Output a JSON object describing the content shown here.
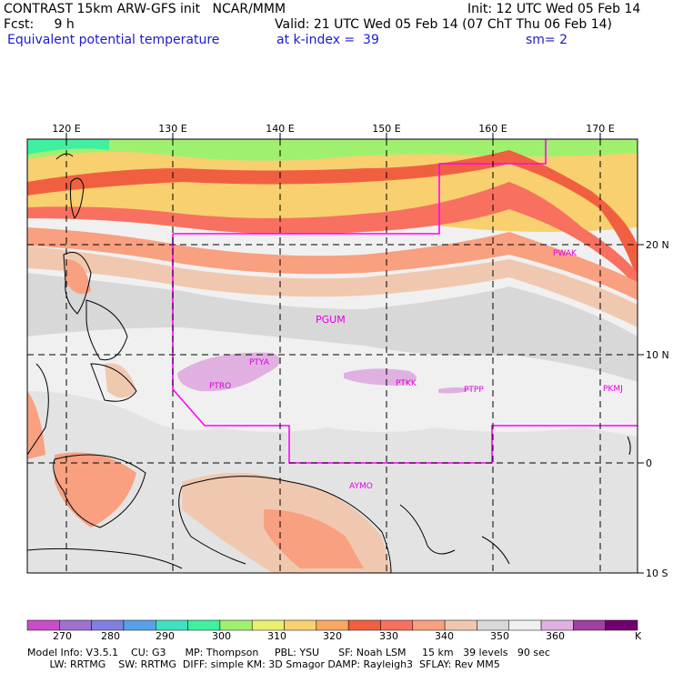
{
  "header": {
    "line1_left": "CONTRAST 15km ARW-GFS init   NCAR/MMM",
    "line1_right": "Init: 12 UTC Wed 05 Feb 14",
    "line2_left": "Fcst:     9 h",
    "line2_right": "Valid: 21 UTC Wed 05 Feb 14 (07 ChT Thu 06 Feb 14)",
    "line3_left": "Equivalent potential temperature",
    "line3_mid": "at k-index =  39",
    "line3_right": "sm= 2"
  },
  "map": {
    "lon_labels": [
      "120 E",
      "130 E",
      "140 E",
      "150 E",
      "160 E",
      "170 E"
    ],
    "lat_labels": [
      "20 N",
      "10 N",
      "0",
      "10 S"
    ],
    "stations": [
      "PWAK",
      "PGUM",
      "PTYA",
      "PTRO",
      "PTKK",
      "PTPP",
      "PKMJ",
      "AYMO"
    ]
  },
  "colorbar": {
    "colors": [
      "#c84ec8",
      "#a070d0",
      "#8080e0",
      "#5aa0e8",
      "#40e0c0",
      "#40f0a0",
      "#a0f070",
      "#e8f070",
      "#f8d070",
      "#f8a860",
      "#f06040",
      "#f87060",
      "#f8a080",
      "#f0c8b0",
      "#d8d8d8",
      "#f0f0f0",
      "#e0b0e0",
      "#a040a0",
      "#700070"
    ],
    "labels": [
      "270",
      "280",
      "290",
      "300",
      "310",
      "320",
      "330",
      "340",
      "350",
      "360"
    ],
    "unit": "K"
  },
  "footer": {
    "line1": "Model Info: V3.5.1    CU: G3      MP: Thompson     PBL: YSU      SF: Noah LSM     15 km   39 levels   90 sec",
    "line2": "       LW: RRTMG    SW: RRTMG  DIFF: simple KM: 3D Smagor DAMP: Rayleigh3  SFLAY: Rev MM5"
  }
}
